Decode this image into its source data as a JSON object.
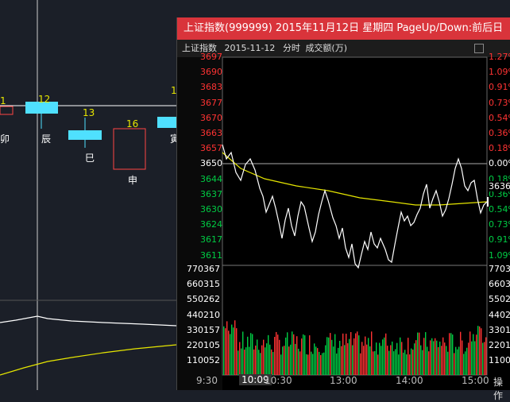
{
  "background": {
    "branch_labels": [
      {
        "id": "branch-mao",
        "text": "卯"
      },
      {
        "id": "branch-chen",
        "text": "辰"
      },
      {
        "id": "branch-si",
        "text": "巳"
      },
      {
        "id": "branch-shen",
        "text": "申"
      },
      {
        "id": "branch-yin",
        "text": "寅"
      }
    ],
    "bar_numbers": {
      "n1": "1",
      "n12": "12",
      "n13": "13",
      "n16": "16",
      "n1b": "1"
    }
  },
  "popup": {
    "title": "上证指数(999999) 2015年11月12日 星期四 PageUp/Down:前后日",
    "header": {
      "index_name": "上证指数",
      "date": "2015-11-12",
      "mode": "分时",
      "metric": "成交额(万)"
    },
    "y_price_labels": [
      "3697",
      "3690",
      "3683",
      "3677",
      "3670",
      "3663",
      "3657",
      "3650",
      "3644",
      "3637",
      "3630",
      "3624",
      "3617",
      "3611"
    ],
    "y_pct_labels": [
      "1.27%",
      "1.09%",
      "0.91%",
      "0.73%",
      "0.54%",
      "0.36%",
      "0.18%",
      "0.00%",
      "0.18%",
      "0.36%",
      "0.54%",
      "0.73%",
      "0.91%",
      "1.09%"
    ],
    "current_price_label": "3636",
    "volume_labels": [
      "770367",
      "660315",
      "550262",
      "440210",
      "330157",
      "220105",
      "110052"
    ],
    "x_labels": [
      "9:30",
      "10:30",
      "13:00",
      "14:00",
      "15:00"
    ],
    "cursor_time": "10:09",
    "toolbar_label": "操作",
    "colors": {
      "title_bar": "#d9343b",
      "up": "#ff3333",
      "down": "#00cc44",
      "price_line": "#ffffff",
      "avg_line": "#e6e600"
    }
  }
}
